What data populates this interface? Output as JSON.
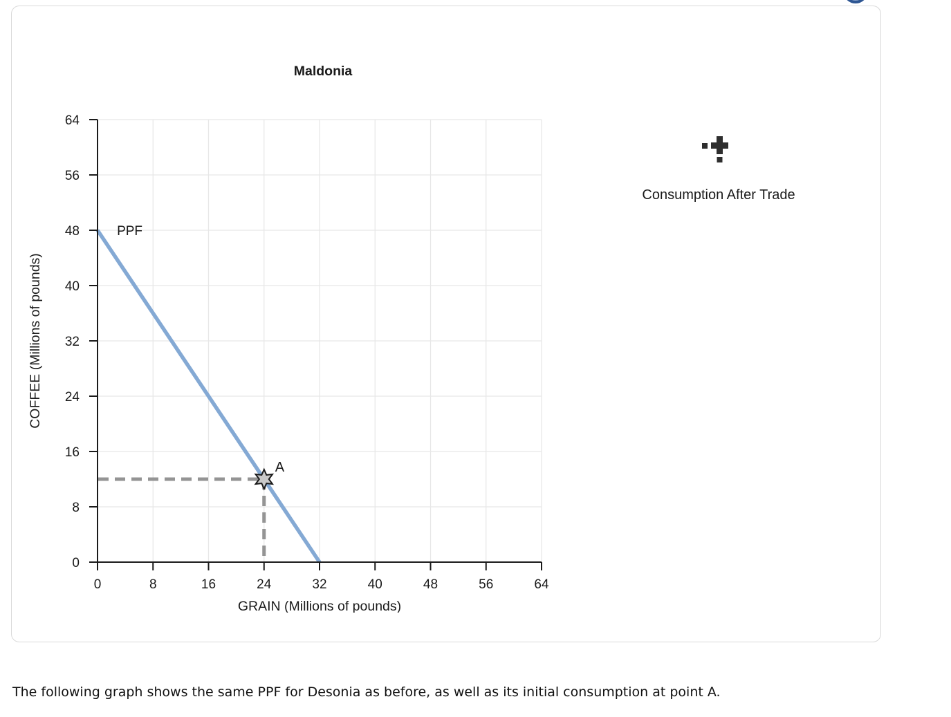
{
  "page": {
    "bottom_text": "The following graph shows the same PPF for Desonia as before, as well as its initial consumption at point A."
  },
  "tool": {
    "label": "Consumption After Trade"
  },
  "chart_data": {
    "type": "line",
    "title": "Maldonia",
    "xlabel": "GRAIN (Millions of pounds)",
    "ylabel": "COFFEE (Millions of pounds)",
    "xlim": [
      0,
      64
    ],
    "ylim": [
      0,
      64
    ],
    "xticks": [
      0,
      8,
      16,
      24,
      32,
      40,
      48,
      56,
      64
    ],
    "yticks": [
      0,
      8,
      16,
      24,
      32,
      40,
      48,
      56,
      64
    ],
    "grid": true,
    "legend_position": "none",
    "series": [
      {
        "name": "PPF",
        "x": [
          0,
          32
        ],
        "y": [
          48,
          0
        ],
        "color": "#84a9d4",
        "label_pos": {
          "x": 2.8,
          "y": 47.3
        }
      }
    ],
    "points": [
      {
        "name": "A",
        "x": 24,
        "y": 12,
        "marker": "star6",
        "fill": "#c9c9c9",
        "stroke": "#1a1a1a",
        "dashed_guides": true
      }
    ],
    "colors": {
      "grid": "#e7e7e7",
      "axis": "#1a1a1a",
      "dash": "#949494",
      "ppf": "#84a9d4",
      "tool_icon": "#2e2e2e",
      "help_icon": "#2e5693"
    }
  }
}
